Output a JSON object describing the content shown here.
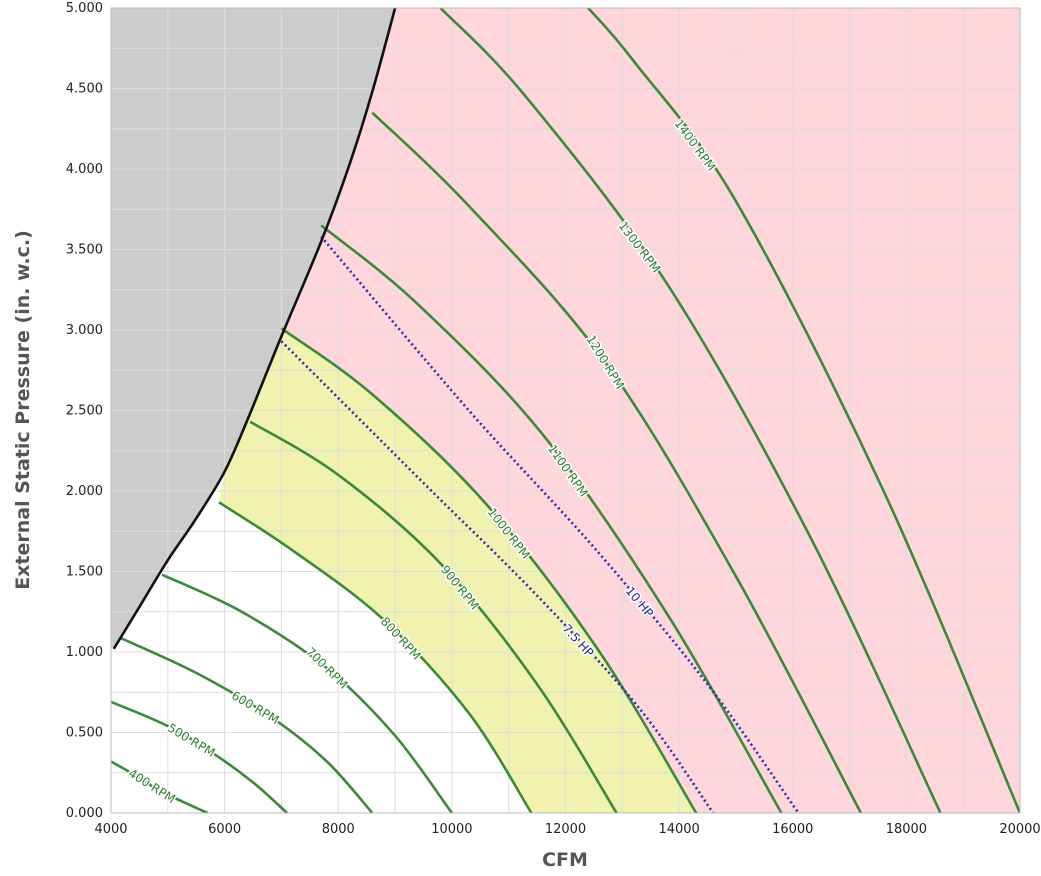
{
  "chart_data": {
    "type": "line",
    "title": "",
    "xlabel": "CFM",
    "ylabel": "External Static Pressure (in. w.c.)",
    "xlim": [
      4000,
      20000
    ],
    "ylim": [
      0,
      5
    ],
    "x_ticks": [
      "4000",
      "6000",
      "8000",
      "10000",
      "12000",
      "14000",
      "16000",
      "18000",
      "20000"
    ],
    "y_ticks": [
      "0.000",
      "0.500",
      "1.000",
      "1.500",
      "2.000",
      "2.500",
      "3.000",
      "3.500",
      "4.000",
      "4.500",
      "5.000"
    ],
    "grid": true,
    "legend": "none",
    "colors": {
      "rpm_curve": "#3a8a3a",
      "rpm_label": "#2e7d32",
      "hp_curve": "#2b2bb0",
      "hp_label": "#1f1f9a",
      "surge_line": "#111111",
      "surge_region": "#cccccc",
      "region_under_75hp": "#f2f2b0",
      "region_over_75hp": "#ffd6db",
      "grid": "#dddddd"
    },
    "regions": [
      {
        "name": "surge",
        "color": "#cccccc"
      },
      {
        "name": "7.5 HP to 10+ HP range",
        "color": "#ffd6db"
      },
      {
        "name": "under 7.5 HP range",
        "color": "#f2f2b0"
      }
    ],
    "surge_line": {
      "x": [
        4050,
        4500,
        5000,
        5500,
        6000,
        6400,
        7000,
        7700,
        8200,
        8600,
        9000
      ],
      "y": [
        1.02,
        1.28,
        1.57,
        1.83,
        2.12,
        2.44,
        2.96,
        3.55,
        4.03,
        4.48,
        5.0
      ]
    },
    "series": [
      {
        "name": "400 RPM",
        "label": "400 RPM",
        "x": [
          4000,
          4400,
          4800,
          5200,
          5700
        ],
        "y": [
          0.32,
          0.24,
          0.15,
          0.08,
          0.0
        ]
      },
      {
        "name": "500 RPM",
        "label": "500 RPM",
        "x": [
          4000,
          5000,
          5800,
          6500,
          7100
        ],
        "y": [
          0.69,
          0.54,
          0.37,
          0.19,
          0.0
        ]
      },
      {
        "name": "600 RPM",
        "label": "600 RPM",
        "x": [
          4150,
          5500,
          6800,
          7800,
          8600
        ],
        "y": [
          1.09,
          0.87,
          0.6,
          0.32,
          0.0
        ]
      },
      {
        "name": "700 RPM",
        "label": "700 RPM",
        "x": [
          4900,
          6300,
          7800,
          9000,
          10000
        ],
        "y": [
          1.48,
          1.25,
          0.9,
          0.48,
          0.0
        ]
      },
      {
        "name": "800 RPM",
        "label": "800 RPM",
        "x": [
          5900,
          7200,
          8800,
          10300,
          11400
        ],
        "y": [
          1.93,
          1.63,
          1.2,
          0.62,
          0.0
        ]
      },
      {
        "name": "900 RPM",
        "label": "900 RPM",
        "x": [
          6450,
          8000,
          9800,
          11500,
          12900
        ],
        "y": [
          2.43,
          2.1,
          1.55,
          0.8,
          0.0
        ]
      },
      {
        "name": "1000 RPM",
        "label": "1000 RPM",
        "x": [
          7000,
          8600,
          10600,
          12600,
          14300
        ],
        "y": [
          3.01,
          2.6,
          1.92,
          1.0,
          0.0
        ]
      },
      {
        "name": "1100 RPM",
        "label": "1100 RPM",
        "x": [
          7700,
          9400,
          11600,
          13800,
          15800
        ],
        "y": [
          3.65,
          3.16,
          2.35,
          1.23,
          0.0
        ]
      },
      {
        "name": "1200 RPM",
        "label": "1200 RPM",
        "x": [
          8600,
          10300,
          12700,
          15000,
          17200
        ],
        "y": [
          4.35,
          3.77,
          2.8,
          1.47,
          0.0
        ]
      },
      {
        "name": "1300 RPM",
        "label": "1300 RPM",
        "x": [
          9800,
          11300,
          13800,
          16300,
          18600
        ],
        "y": [
          5.0,
          4.45,
          3.28,
          1.72,
          0.0
        ]
      },
      {
        "name": "1400 RPM",
        "label": "1400 RPM",
        "x": [
          12400,
          13200,
          15000,
          17600,
          20000
        ],
        "y": [
          5.0,
          4.67,
          3.8,
          2.0,
          0.0
        ]
      }
    ],
    "hp_lines": [
      {
        "name": "7.5 HP",
        "label": "7.5 HP",
        "x": [
          7000,
          9500,
          11500,
          13300,
          14600
        ],
        "y": [
          2.93,
          2.05,
          1.35,
          0.65,
          0.0
        ]
      },
      {
        "name": "10 HP",
        "label": "10 HP",
        "x": [
          7700,
          10300,
          12500,
          14500,
          16100
        ],
        "y": [
          3.58,
          2.5,
          1.65,
          0.8,
          0.0
        ]
      }
    ]
  }
}
